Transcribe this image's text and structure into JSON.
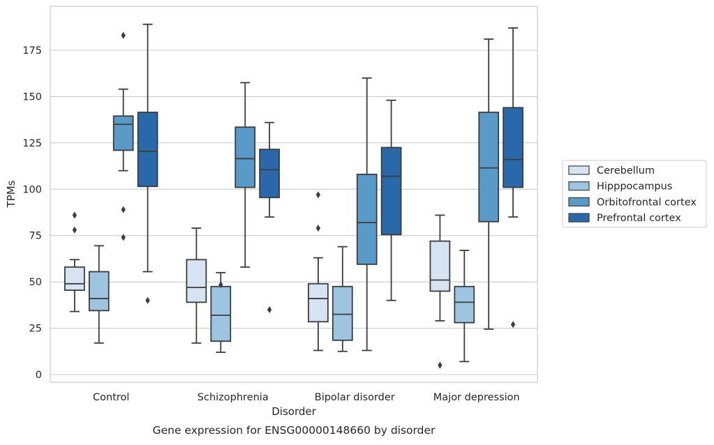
{
  "chart_data": {
    "type": "box",
    "title": "",
    "caption": "Gene expression for ENSG00000148660 by disorder",
    "xlabel": "Disorder",
    "ylabel": "TPMs",
    "ylim": [
      -4,
      200
    ],
    "yticks": [
      0,
      25,
      50,
      75,
      100,
      125,
      150,
      175
    ],
    "grid": "horizontal",
    "legend_position": "right",
    "categories": [
      "Control",
      "Schizophrenia",
      "Bipolar disorder",
      "Major depression"
    ],
    "series": [
      {
        "name": "Cerebellum",
        "color": "#d6e3f2",
        "boxes": [
          {
            "whislo": 34,
            "q1": 45.5,
            "med": 49,
            "q3": 58,
            "whishi": 62,
            "fliers": [
              78,
              86
            ]
          },
          {
            "whislo": 17,
            "q1": 39,
            "med": 47,
            "q3": 62,
            "whishi": 79,
            "fliers": []
          },
          {
            "whislo": 13,
            "q1": 28.5,
            "med": 41,
            "q3": 49,
            "whishi": 63,
            "fliers": [
              79,
              97
            ]
          },
          {
            "whislo": 29,
            "q1": 45,
            "med": 51,
            "q3": 72,
            "whishi": 86,
            "fliers": [
              5
            ]
          }
        ]
      },
      {
        "name": "Hipppocampus",
        "color": "#9dc4e0",
        "boxes": [
          {
            "whislo": 17,
            "q1": 34.5,
            "med": 41,
            "q3": 55.5,
            "whishi": 69.5,
            "fliers": []
          },
          {
            "whislo": 12,
            "q1": 18,
            "med": 32,
            "q3": 47.5,
            "whishi": 55,
            "fliers": [
              48.5
            ]
          },
          {
            "whislo": 12.5,
            "q1": 18.5,
            "med": 32.5,
            "q3": 47.5,
            "whishi": 69,
            "fliers": []
          },
          {
            "whislo": 7,
            "q1": 28,
            "med": 39,
            "q3": 47.5,
            "whishi": 67,
            "fliers": []
          }
        ]
      },
      {
        "name": "Orbitofrontal cortex",
        "color": "#5a9ac8",
        "boxes": [
          {
            "whislo": 110,
            "q1": 121,
            "med": 135,
            "q3": 139.5,
            "whishi": 154,
            "fliers": [
              74,
              89,
              183
            ]
          },
          {
            "whislo": 58,
            "q1": 101,
            "med": 116.5,
            "q3": 133.5,
            "whishi": 157.5,
            "fliers": []
          },
          {
            "whislo": 13,
            "q1": 59.5,
            "med": 82,
            "q3": 108,
            "whishi": 160,
            "fliers": []
          },
          {
            "whislo": 24.5,
            "q1": 82.5,
            "med": 111.5,
            "q3": 141.5,
            "whishi": 181,
            "fliers": []
          }
        ]
      },
      {
        "name": "Prefrontal cortex",
        "color": "#2a69a9",
        "boxes": [
          {
            "whislo": 55.5,
            "q1": 101.5,
            "med": 120.5,
            "q3": 141.5,
            "whishi": 189,
            "fliers": [
              40
            ]
          },
          {
            "whislo": 85,
            "q1": 95.5,
            "med": 110.5,
            "q3": 121.5,
            "whishi": 136,
            "fliers": [
              35
            ]
          },
          {
            "whislo": 40,
            "q1": 75.5,
            "med": 107,
            "q3": 122.5,
            "whishi": 148,
            "fliers": []
          },
          {
            "whislo": 85,
            "q1": 101,
            "med": 116,
            "q3": 144,
            "whishi": 187,
            "fliers": [
              27
            ]
          }
        ]
      }
    ]
  }
}
